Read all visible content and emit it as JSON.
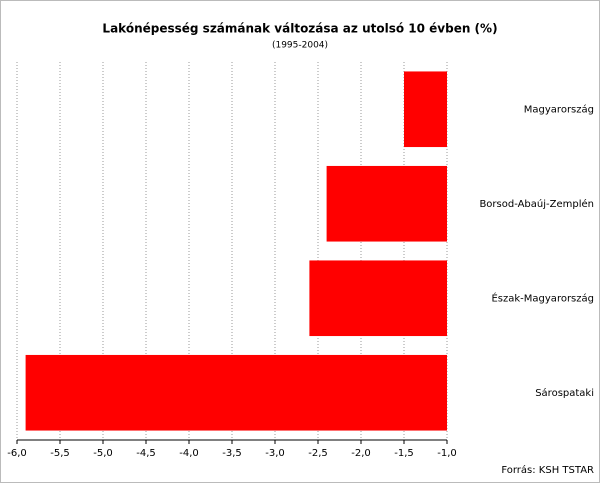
{
  "chart_data": {
    "type": "bar",
    "orientation": "horizontal",
    "title": "Lakónépesség számának változása az utolsó 10 évben (%)",
    "subtitle": "(1995-2004)",
    "categories": [
      "Magyarország",
      "Borsod-Abaúj-Zemplén",
      "Észak-Magyarország",
      "Sárospataki"
    ],
    "values": [
      -1.5,
      -2.4,
      -2.6,
      -5.9
    ],
    "color": "#ff0000",
    "xlim": [
      -6.0,
      -1.0
    ],
    "xticks": [
      {
        "value": -6.0,
        "label": "-6,0"
      },
      {
        "value": -5.5,
        "label": "-5,5"
      },
      {
        "value": -5.0,
        "label": "-5,0"
      },
      {
        "value": -4.5,
        "label": "-4,5"
      },
      {
        "value": -4.0,
        "label": "-4,0"
      },
      {
        "value": -3.5,
        "label": "-3,5"
      },
      {
        "value": -3.0,
        "label": "-3,0"
      },
      {
        "value": -2.5,
        "label": "-2,5"
      },
      {
        "value": -2.0,
        "label": "-2,0"
      },
      {
        "value": -1.5,
        "label": "-1,5"
      },
      {
        "value": -1.0,
        "label": "-1,0"
      }
    ],
    "grid": true,
    "source": "Forrás: KSH TSTAR"
  }
}
